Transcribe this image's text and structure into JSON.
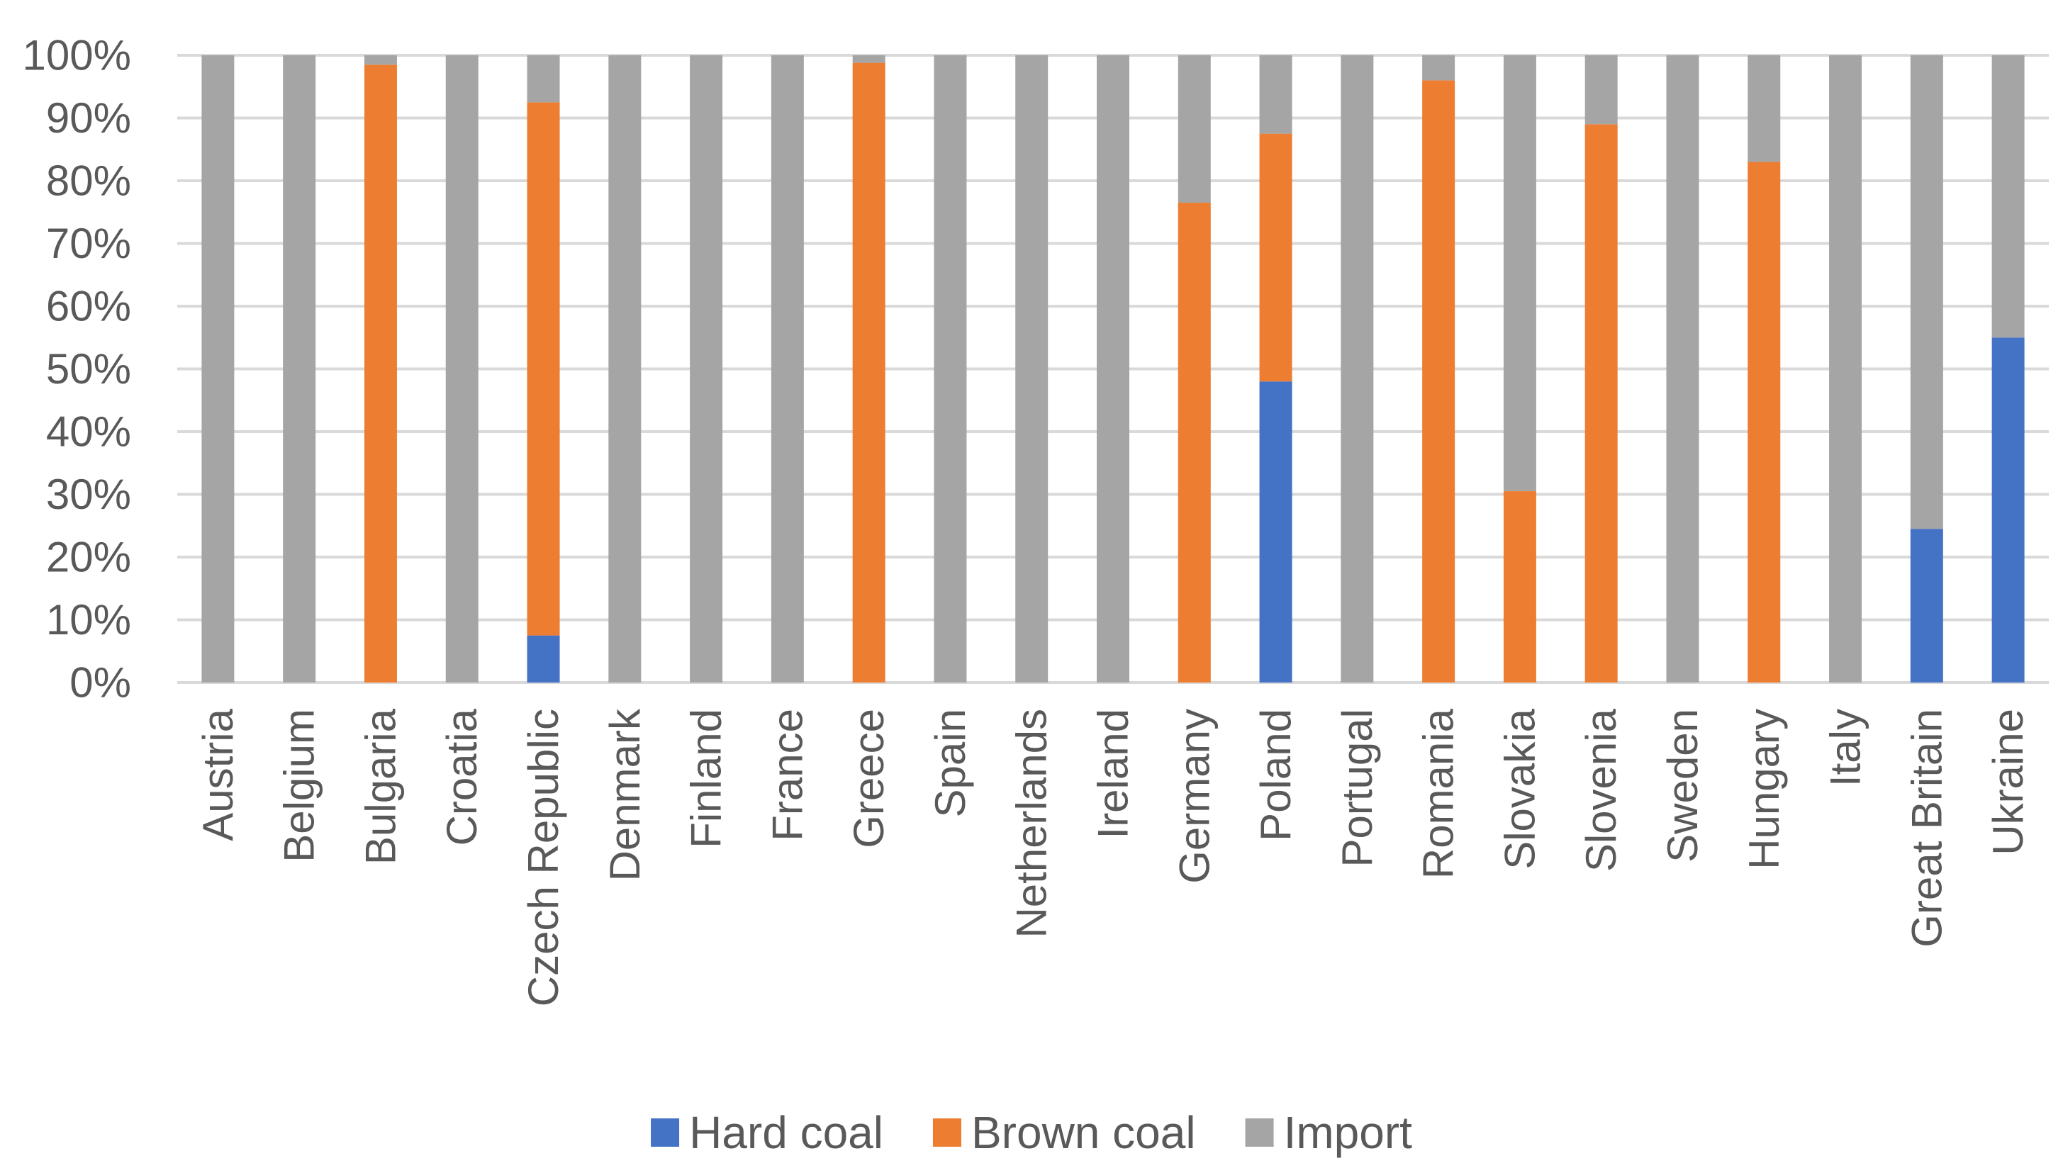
{
  "chart_data": {
    "type": "bar",
    "stacking": "percent",
    "title": "",
    "xlabel": "",
    "ylabel": "",
    "ylim": [
      0,
      100
    ],
    "y_ticks": [
      "0%",
      "10%",
      "20%",
      "30%",
      "40%",
      "50%",
      "60%",
      "70%",
      "80%",
      "90%",
      "100%"
    ],
    "grid": true,
    "legend_position": "bottom",
    "categories": [
      "Austria",
      "Belgium",
      "Bulgaria",
      "Croatia",
      "Czech Republic",
      "Denmark",
      "Finland",
      "France",
      "Greece",
      "Spain",
      "Netherlands",
      "Ireland",
      "Germany",
      "Poland",
      "Portugal",
      "Romania",
      "Slovakia",
      "Slovenia",
      "Sweden",
      "Hungary",
      "Italy",
      "Great Britain",
      "Ukraine"
    ],
    "series": [
      {
        "name": "Hard coal",
        "color": "#4472c4",
        "values": [
          0,
          0,
          0,
          0,
          7.5,
          0,
          0,
          0,
          0,
          0,
          0,
          0,
          0,
          48,
          0,
          0,
          0,
          0,
          0,
          0,
          0,
          24.5,
          55
        ]
      },
      {
        "name": "Brown coal",
        "color": "#ed7d31",
        "values": [
          0,
          0,
          98.5,
          0,
          85,
          0,
          0,
          0,
          98.8,
          0,
          0,
          0,
          76.5,
          39.5,
          0,
          96,
          30.5,
          89,
          0,
          83,
          0,
          0,
          0
        ]
      },
      {
        "name": "Import",
        "color": "#a5a5a5",
        "values": [
          100,
          100,
          1.5,
          100,
          7.5,
          100,
          100,
          100,
          1.2,
          100,
          100,
          100,
          23.5,
          12.5,
          100,
          4,
          69.5,
          11,
          100,
          17,
          100,
          75.5,
          45
        ]
      }
    ]
  }
}
